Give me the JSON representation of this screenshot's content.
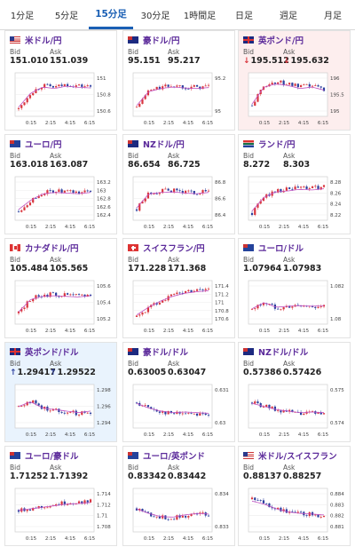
{
  "tabs": [
    {
      "label": "1分足",
      "active": false
    },
    {
      "label": "5分足",
      "active": false
    },
    {
      "label": "15分足",
      "active": true
    },
    {
      "label": "30分足",
      "active": false
    },
    {
      "label": "1時間足",
      "active": false
    },
    {
      "label": "日足",
      "active": false
    },
    {
      "label": "週足",
      "active": false
    },
    {
      "label": "月足",
      "active": false
    }
  ],
  "bid_label": "Bid",
  "ask_label": "Ask",
  "colors": {
    "accent": "#1a5fb4",
    "title": "#5b2a9a",
    "up": "#d9363e",
    "down": "#2b3f9e",
    "ma": "#c050c0"
  },
  "cards": [
    {
      "title": "米ドル/円",
      "flag": "us",
      "bid": "151.010",
      "ask": "151.039",
      "bg": "white",
      "arrow": "",
      "yticks": [
        "151",
        "150.8",
        "150.6"
      ],
      "xticks": [
        "0:15",
        "2:15",
        "4:15",
        "6:15"
      ],
      "trend": [
        0.1,
        0.55,
        0.75,
        0.7,
        0.78,
        0.74,
        0.72
      ]
    },
    {
      "title": "豪ドル/円",
      "flag": "au",
      "bid": "95.151",
      "ask": "95.217",
      "bg": "white",
      "arrow": "",
      "yticks": [
        "95.2",
        "95"
      ],
      "xticks": [
        "0:15",
        "2:15",
        "4:15",
        "6:15"
      ],
      "trend": [
        0.15,
        0.6,
        0.7,
        0.75,
        0.72,
        0.7,
        0.73
      ]
    },
    {
      "title": "英ポンド/円",
      "flag": "gb",
      "bid": "195.512",
      "ask": "195.632",
      "bg": "pink",
      "arrow": "↓",
      "yticks": [
        "196",
        "195.5",
        "195"
      ],
      "xticks": [
        "0:15",
        "2:15",
        "4:15",
        "6:15"
      ],
      "trend": [
        0.2,
        0.75,
        0.85,
        0.8,
        0.7,
        0.75,
        0.65
      ]
    },
    {
      "title": "ユーロ/円",
      "flag": "eu",
      "bid": "163.018",
      "ask": "163.087",
      "bg": "white",
      "arrow": "",
      "yticks": [
        "163.2",
        "163",
        "162.8",
        "162.6",
        "162.4"
      ],
      "xticks": [
        "0:15",
        "2:15",
        "4:15",
        "6:15"
      ],
      "trend": [
        0.15,
        0.45,
        0.65,
        0.7,
        0.68,
        0.66,
        0.7
      ]
    },
    {
      "title": "NZドル/円",
      "flag": "nz",
      "bid": "86.654",
      "ask": "86.725",
      "bg": "white",
      "arrow": "",
      "yticks": [
        "86.8",
        "86.6",
        "86.4"
      ],
      "xticks": [
        "0:15",
        "2:15",
        "4:15",
        "6:15"
      ],
      "trend": [
        0.2,
        0.65,
        0.7,
        0.72,
        0.68,
        0.66,
        0.7
      ]
    },
    {
      "title": "ランド/円",
      "flag": "za",
      "bid": "8.272",
      "ask": "8.303",
      "bg": "white",
      "arrow": "",
      "yticks": [
        "8.28",
        "8.26",
        "8.24",
        "8.22"
      ],
      "xticks": [
        "0:15",
        "2:15",
        "4:15",
        "6:15"
      ],
      "trend": [
        0.1,
        0.55,
        0.72,
        0.75,
        0.8,
        0.78,
        0.82
      ]
    },
    {
      "title": "カナダドル/円",
      "flag": "ca",
      "bid": "105.484",
      "ask": "105.565",
      "bg": "white",
      "arrow": "",
      "yticks": [
        "105.6",
        "105.4",
        "105.2"
      ],
      "xticks": [
        "0:15",
        "2:15",
        "4:15",
        "6:15"
      ],
      "trend": [
        0.2,
        0.6,
        0.7,
        0.72,
        0.7,
        0.68,
        0.72
      ]
    },
    {
      "title": "スイスフラン/円",
      "flag": "ch",
      "bid": "171.228",
      "ask": "171.368",
      "bg": "white",
      "arrow": "",
      "yticks": [
        "171.4",
        "171.2",
        "171",
        "170.8",
        "170.6"
      ],
      "xticks": [
        "0:15",
        "2:15",
        "4:15",
        "6:15"
      ],
      "trend": [
        0.1,
        0.35,
        0.55,
        0.7,
        0.8,
        0.85,
        0.88
      ]
    },
    {
      "title": "ユーロ/ドル",
      "flag": "eu",
      "bid": "1.07964",
      "ask": "1.07983",
      "bg": "white",
      "arrow": "",
      "yticks": [
        "1.082",
        "1.08"
      ],
      "xticks": [
        "0:15",
        "2:15",
        "4:15",
        "6:15"
      ],
      "trend": [
        0.3,
        0.5,
        0.35,
        0.38,
        0.4,
        0.38,
        0.4
      ]
    },
    {
      "title": "英ポンド/ドル",
      "flag": "gb",
      "bid": "1.29417",
      "ask": "1.29522",
      "bg": "blue",
      "arrow": "↑",
      "yticks": [
        "1.298",
        "1.296",
        "1.294"
      ],
      "xticks": [
        "0:15",
        "2:15",
        "4:15",
        "6:15"
      ],
      "trend": [
        0.5,
        0.65,
        0.45,
        0.4,
        0.35,
        0.3,
        0.35
      ]
    },
    {
      "title": "豪ドル/ドル",
      "flag": "au",
      "bid": "0.63005",
      "ask": "0.63047",
      "bg": "white",
      "arrow": "",
      "yticks": [
        "0.631",
        "0.63"
      ],
      "xticks": [
        "0:15",
        "2:15",
        "4:15",
        "6:15"
      ],
      "trend": [
        0.6,
        0.45,
        0.35,
        0.3,
        0.32,
        0.3,
        0.28
      ]
    },
    {
      "title": "NZドル/ドル",
      "flag": "nz",
      "bid": "0.57386",
      "ask": "0.57426",
      "bg": "white",
      "arrow": "",
      "yticks": [
        "0.575",
        "0.574"
      ],
      "xticks": [
        "0:15",
        "2:15",
        "4:15",
        "6:15"
      ],
      "trend": [
        0.6,
        0.5,
        0.4,
        0.35,
        0.3,
        0.32,
        0.3
      ]
    },
    {
      "title": "ユーロ/豪ドル",
      "flag": "eu",
      "bid": "1.71252",
      "ask": "1.71392",
      "bg": "white",
      "arrow": "",
      "yticks": [
        "1.714",
        "1.712",
        "1.71",
        "1.708"
      ],
      "xticks": [
        "0:15",
        "2:15",
        "4:15",
        "6:15"
      ],
      "trend": [
        0.5,
        0.55,
        0.6,
        0.65,
        0.7,
        0.72,
        0.75
      ]
    },
    {
      "title": "ユーロ/英ポンド",
      "flag": "eu",
      "bid": "0.83342",
      "ask": "0.83442",
      "bg": "white",
      "arrow": "",
      "yticks": [
        "0.834",
        "0.833"
      ],
      "xticks": [
        "0:15",
        "2:15",
        "4:15",
        "6:15"
      ],
      "trend": [
        0.55,
        0.4,
        0.3,
        0.28,
        0.35,
        0.4,
        0.38
      ]
    },
    {
      "title": "米ドル/スイスフラン",
      "flag": "us",
      "bid": "0.88137",
      "ask": "0.88257",
      "bg": "white",
      "arrow": "",
      "yticks": [
        "0.884",
        "0.883",
        "0.882",
        "0.881"
      ],
      "xticks": [
        "0:15",
        "2:15",
        "4:15",
        "6:15"
      ],
      "trend": [
        0.8,
        0.7,
        0.55,
        0.45,
        0.4,
        0.38,
        0.35
      ]
    }
  ]
}
